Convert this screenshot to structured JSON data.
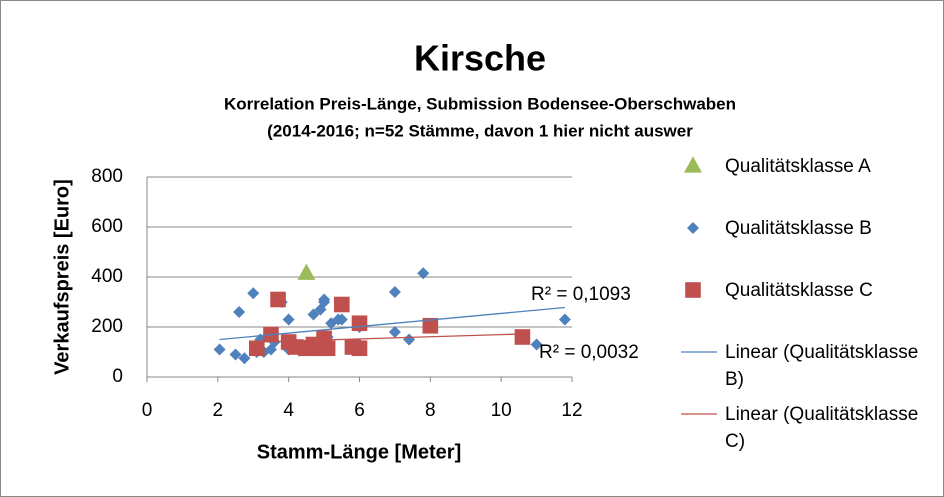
{
  "chart_data": {
    "type": "scatter",
    "title": "Kirsche",
    "subtitle": [
      "Korrelation Preis-Länge, Submission Bodensee-Oberschwaben",
      "(2014-2016; n=52 Stämme, davon 1 hier nicht auswer"
    ],
    "x_label": "Stamm-Länge [Meter]",
    "y_label": "Verkaufspreis [Euro]",
    "xlim": [
      0,
      12
    ],
    "xticks": [
      0,
      2,
      4,
      6,
      8,
      10,
      12
    ],
    "ylim": [
      0,
      800
    ],
    "yticks": [
      0,
      200,
      400,
      600,
      800
    ],
    "grid": true,
    "legend": "right",
    "series": [
      {
        "name": "Qualitätsklasse A",
        "color": "#9bbb59",
        "marker": "triangle",
        "x": [
          4.5
        ],
        "values": [
          415
        ]
      },
      {
        "name": "Qualitätsklasse B",
        "color": "#4f81bd",
        "marker": "diamond",
        "x": [
          2.05,
          2.5,
          2.6,
          2.75,
          3.0,
          3.1,
          3.2,
          3.3,
          3.5,
          3.6,
          3.8,
          4.0,
          4.0,
          4.2,
          4.3,
          4.6,
          4.7,
          4.9,
          5.0,
          5.0,
          5.1,
          5.2,
          5.4,
          5.5,
          5.8,
          6.0,
          6.0,
          7.0,
          7.0,
          7.4,
          7.8,
          11.0,
          11.8
        ],
        "values": [
          110,
          90,
          260,
          75,
          335,
          100,
          150,
          100,
          110,
          140,
          300,
          230,
          110,
          130,
          105,
          130,
          250,
          270,
          310,
          300,
          160,
          215,
          230,
          230,
          120,
          130,
          200,
          340,
          180,
          150,
          415,
          130,
          230
        ]
      },
      {
        "name": "Qualitätsklasse C",
        "color": "#c0504d",
        "marker": "square",
        "x": [
          3.1,
          3.5,
          3.7,
          4.0,
          4.2,
          4.5,
          4.7,
          4.9,
          5.0,
          5.1,
          5.5,
          5.8,
          6.0,
          6.0,
          8.0,
          10.6
        ],
        "values": [
          115,
          170,
          310,
          140,
          120,
          115,
          130,
          115,
          155,
          115,
          290,
          120,
          115,
          215,
          205,
          160
        ]
      },
      {
        "name": "Linear (Qualitätsklasse B)",
        "color": "#4f81bd",
        "marker": "line",
        "x": [
          2.05,
          11.8
        ],
        "values": [
          150,
          278
        ]
      },
      {
        "name": "Linear (Qualitätsklasse C)",
        "color": "#c0504d",
        "marker": "line",
        "x": [
          3.1,
          10.6
        ],
        "values": [
          140,
          172
        ]
      }
    ],
    "annotations": [
      "R² = 0,1093",
      "R² = 0,0032"
    ]
  }
}
